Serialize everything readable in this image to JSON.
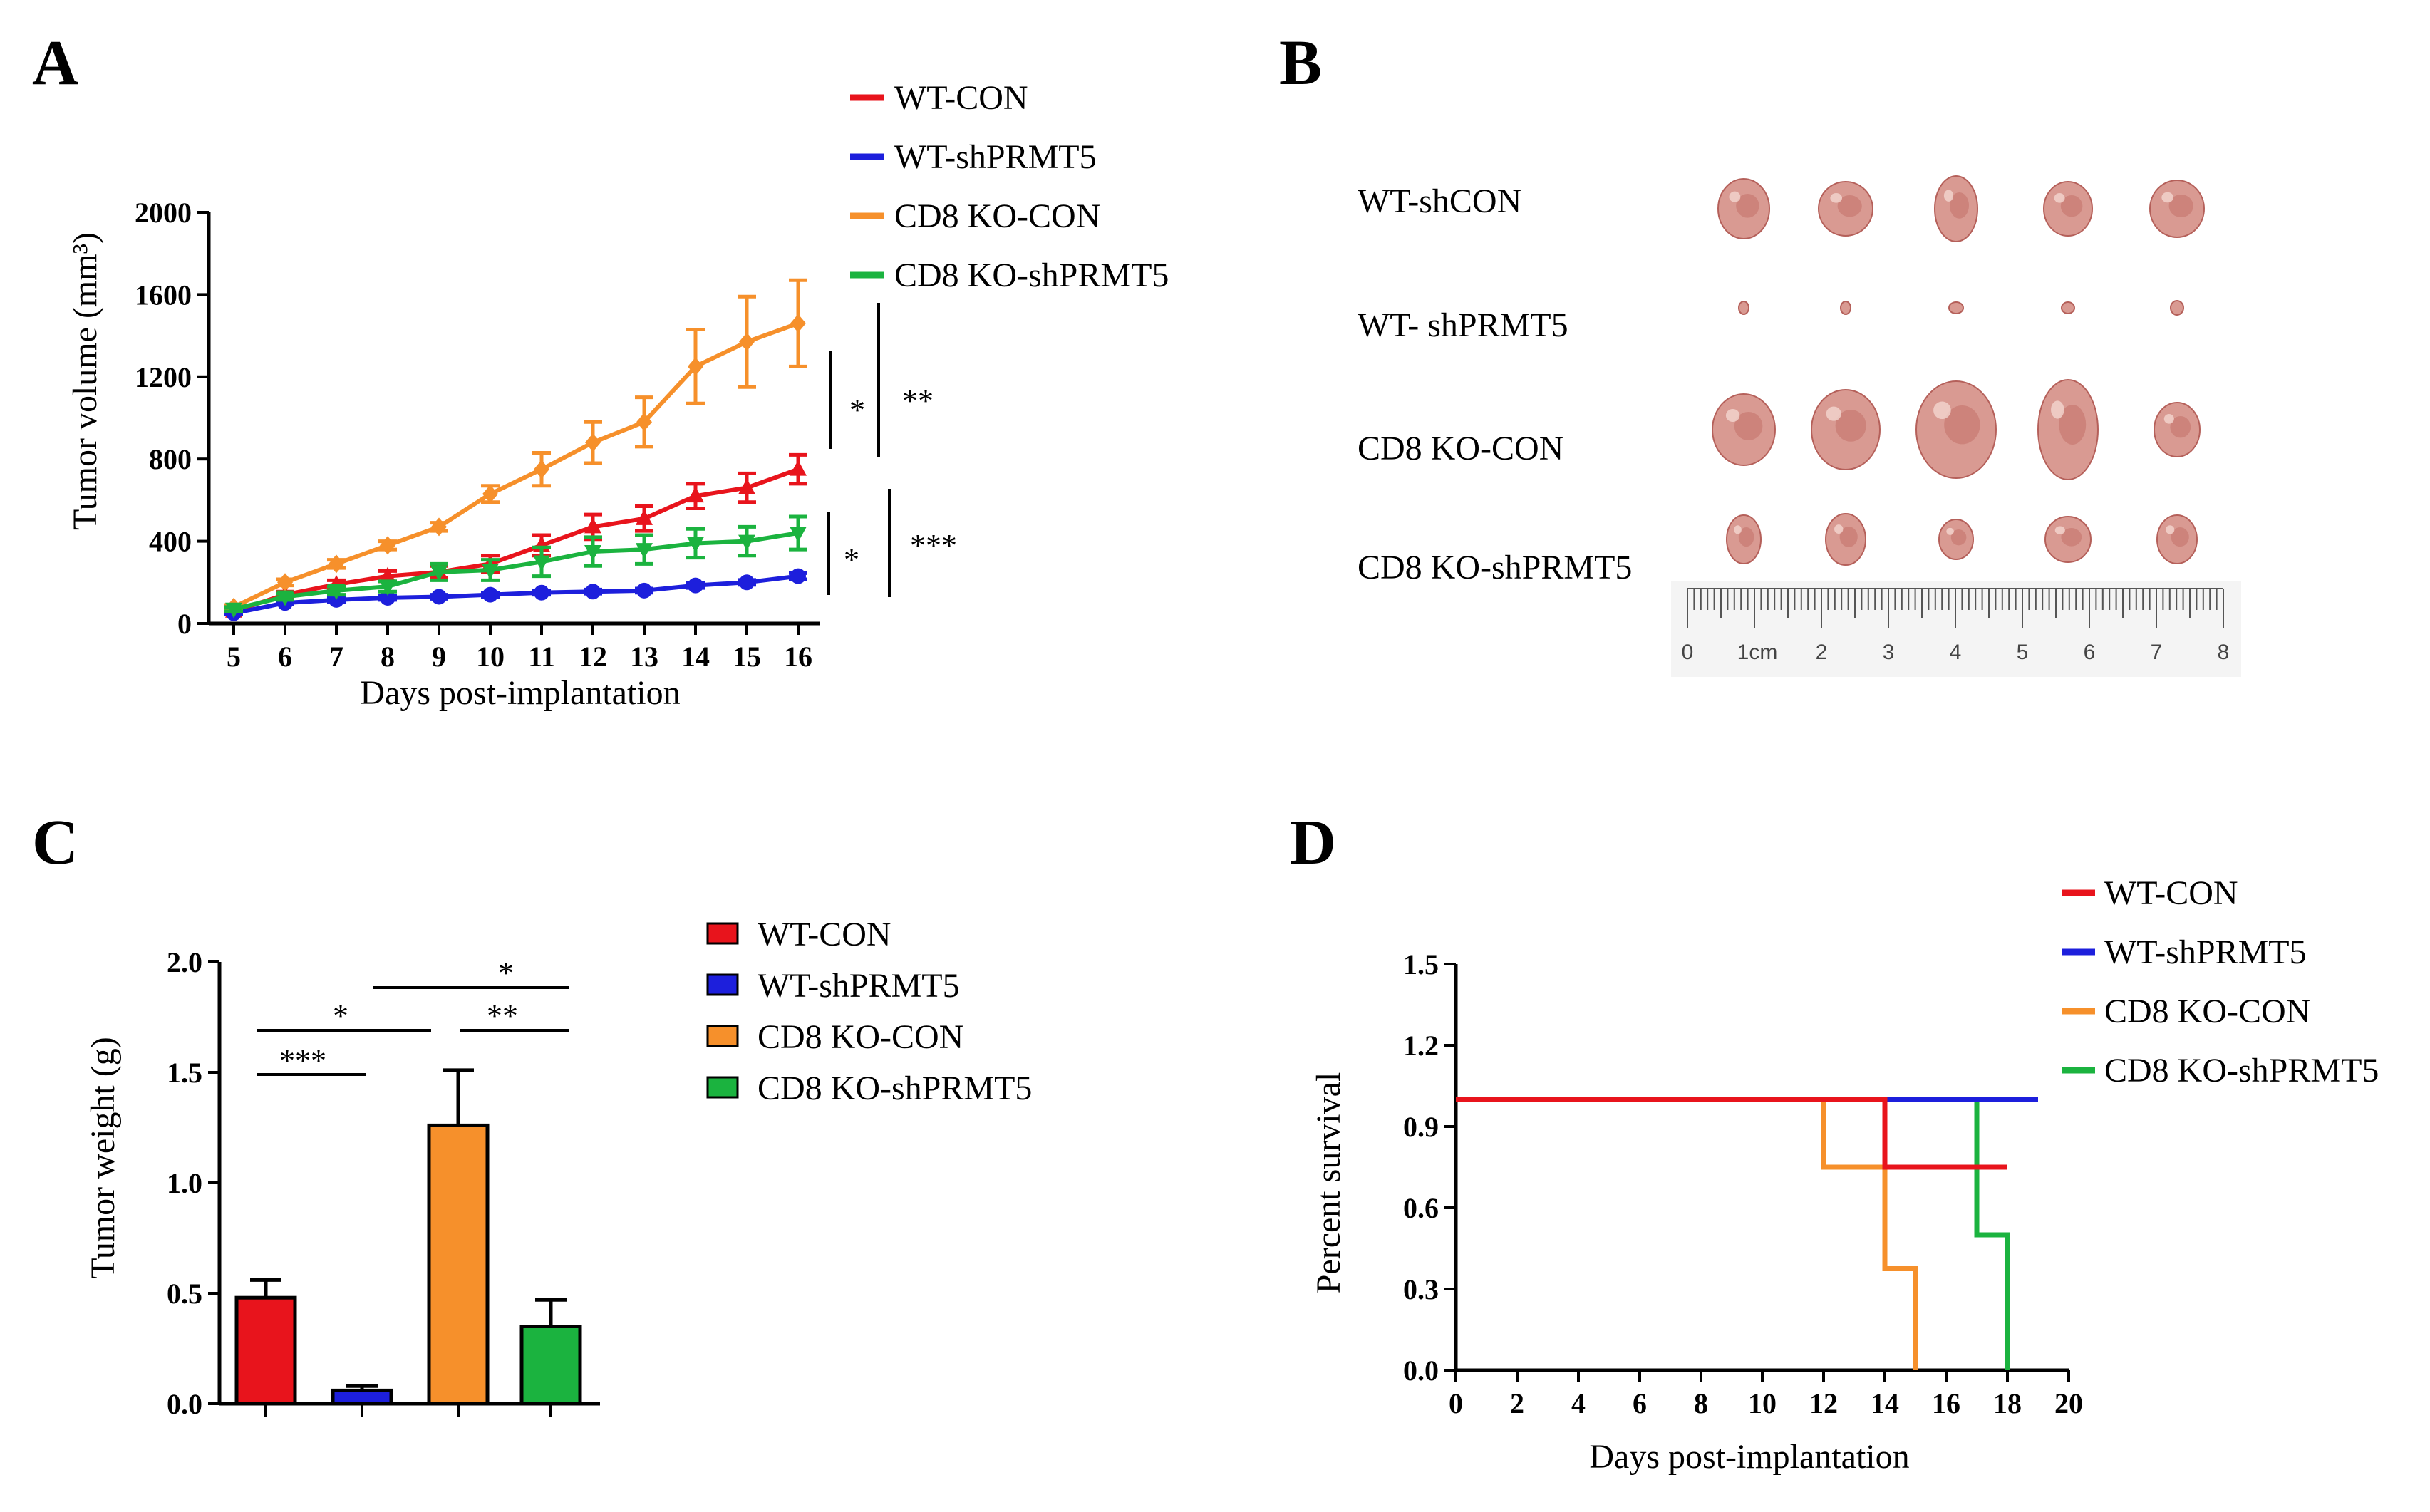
{
  "colors": {
    "wt_con": "#e8141c",
    "wt_shprmt5": "#1d1fdc",
    "cd8_con": "#f6902b",
    "cd8_shprmt5": "#1bb33f",
    "tumor": "#d99a92",
    "tumor_dark": "#b5605a"
  },
  "panel_a": {
    "letter": "A"
  },
  "panel_b": {
    "letter": "B",
    "row_labels": [
      "WT-shCON",
      "WT- shPRMT5",
      "CD8 KO-CON",
      "CD8 KO-shPRMT5"
    ],
    "ruler_labels": [
      "0",
      "1cm",
      "2",
      "3",
      "4",
      "5",
      "6",
      "7",
      "8"
    ]
  },
  "panel_c": {
    "letter": "C"
  },
  "panel_d": {
    "letter": "D"
  },
  "chart_data": [
    {
      "id": "A",
      "type": "line",
      "title": "",
      "xlabel": "Days  post-implantation",
      "ylabel": "Tumor volume (mm³)",
      "ylim": [
        0,
        2000
      ],
      "yticks": [
        "0",
        "400",
        "800",
        "1200",
        "1600",
        "2000"
      ],
      "x": [
        5,
        6,
        7,
        8,
        9,
        10,
        11,
        12,
        13,
        14,
        15,
        16
      ],
      "series": [
        {
          "name": "WT-CON",
          "color": "#e8141c",
          "marker": "triangle-up",
          "values": [
            60,
            140,
            190,
            230,
            250,
            290,
            380,
            470,
            510,
            620,
            660,
            750
          ],
          "errors": [
            10,
            15,
            20,
            25,
            30,
            40,
            50,
            60,
            60,
            60,
            70,
            70
          ]
        },
        {
          "name": "WT-shPRMT5",
          "color": "#1d1fdc",
          "marker": "circle",
          "values": [
            50,
            100,
            115,
            125,
            130,
            140,
            150,
            155,
            160,
            185,
            200,
            230
          ],
          "errors": [
            5,
            8,
            10,
            10,
            10,
            10,
            10,
            10,
            10,
            12,
            12,
            15
          ]
        },
        {
          "name": "CD8 KO-CON",
          "color": "#f6902b",
          "marker": "diamond",
          "values": [
            80,
            200,
            290,
            380,
            470,
            630,
            750,
            880,
            980,
            1250,
            1370,
            1460
          ],
          "errors": [
            10,
            15,
            20,
            20,
            20,
            40,
            80,
            100,
            120,
            180,
            220,
            210
          ]
        },
        {
          "name": "CD8 KO-shPRMT5",
          "color": "#1bb33f",
          "marker": "triangle-down",
          "values": [
            70,
            130,
            160,
            180,
            250,
            260,
            300,
            350,
            360,
            390,
            400,
            440
          ],
          "errors": [
            10,
            15,
            20,
            25,
            40,
            50,
            70,
            70,
            70,
            70,
            70,
            80
          ]
        }
      ],
      "legend": "top-right",
      "annotations": [
        "*",
        "**",
        "*",
        "***"
      ]
    },
    {
      "id": "C",
      "type": "bar",
      "title": "",
      "xlabel": "",
      "ylabel": "Tumor weight (g)",
      "ylim": [
        0,
        2.0
      ],
      "yticks": [
        "0.0",
        "0.5",
        "1.0",
        "1.5",
        "2.0"
      ],
      "categories": [
        "WT-CON",
        "WT-shPRMT5",
        "CD8 KO-CON",
        "CD8 KO-shPRMT5"
      ],
      "values": [
        0.48,
        0.06,
        1.26,
        0.35
      ],
      "errors": [
        0.08,
        0.02,
        0.25,
        0.12
      ],
      "colors": [
        "#e8141c",
        "#1d1fdc",
        "#f6902b",
        "#1bb33f"
      ],
      "legend": "right",
      "annotations": [
        "***",
        "*",
        "*",
        "**"
      ]
    },
    {
      "id": "D",
      "type": "line",
      "title": "",
      "xlabel": "Days  post-implantation",
      "ylabel": "Percent survival",
      "xlim": [
        0,
        20
      ],
      "ylim": [
        0,
        1.5
      ],
      "xticks": [
        "0",
        "2",
        "4",
        "6",
        "8",
        "10",
        "12",
        "14",
        "16",
        "18",
        "20"
      ],
      "yticks": [
        "0.0",
        "0.3",
        "0.6",
        "0.9",
        "1.2",
        "1.5"
      ],
      "series": [
        {
          "name": "WT-CON",
          "color": "#e8141c",
          "steps": [
            [
              0,
              1.0
            ],
            [
              14,
              1.0
            ],
            [
              14,
              0.75
            ],
            [
              18,
              0.75
            ]
          ]
        },
        {
          "name": "WT-shPRMT5",
          "color": "#1d1fdc",
          "steps": [
            [
              14,
              1.0
            ],
            [
              19,
              1.0
            ]
          ]
        },
        {
          "name": "CD8 KO-CON",
          "color": "#f6902b",
          "steps": [
            [
              12,
              1.0
            ],
            [
              12,
              0.75
            ],
            [
              14,
              0.75
            ],
            [
              14,
              0.375
            ],
            [
              15,
              0.375
            ],
            [
              15,
              0.0
            ]
          ]
        },
        {
          "name": "CD8 KO-shPRMT5",
          "color": "#1bb33f",
          "steps": [
            [
              17,
              1.0
            ],
            [
              17,
              0.5
            ],
            [
              18,
              0.5
            ],
            [
              18,
              0.0
            ]
          ]
        }
      ],
      "legend": "top-right"
    }
  ]
}
